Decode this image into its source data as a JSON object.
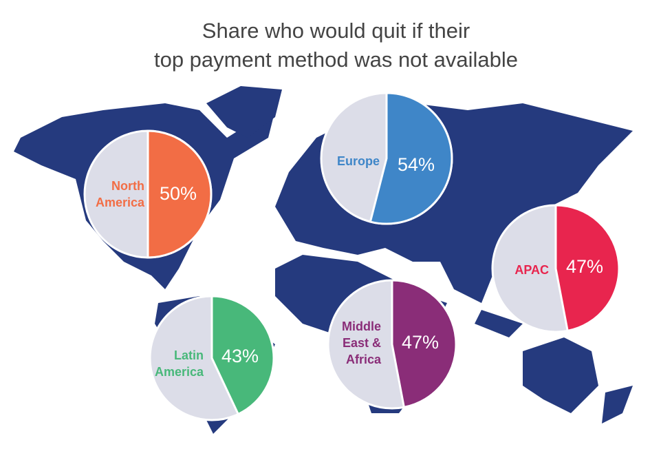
{
  "chart_data": {
    "type": "pie",
    "title": [
      "Share who would quit if their",
      "top payment method was not available"
    ],
    "categories": [
      "North America",
      "Europe",
      "APAC",
      "Latin America",
      "Middle East & Africa"
    ],
    "values": [
      50,
      54,
      47,
      43,
      47
    ],
    "value_labels": [
      "50%",
      "54%",
      "47%",
      "43%",
      "47%"
    ],
    "colors": [
      "#f26d45",
      "#3f86c8",
      "#e8254e",
      "#48b87a",
      "#8a2d78"
    ]
  }
}
